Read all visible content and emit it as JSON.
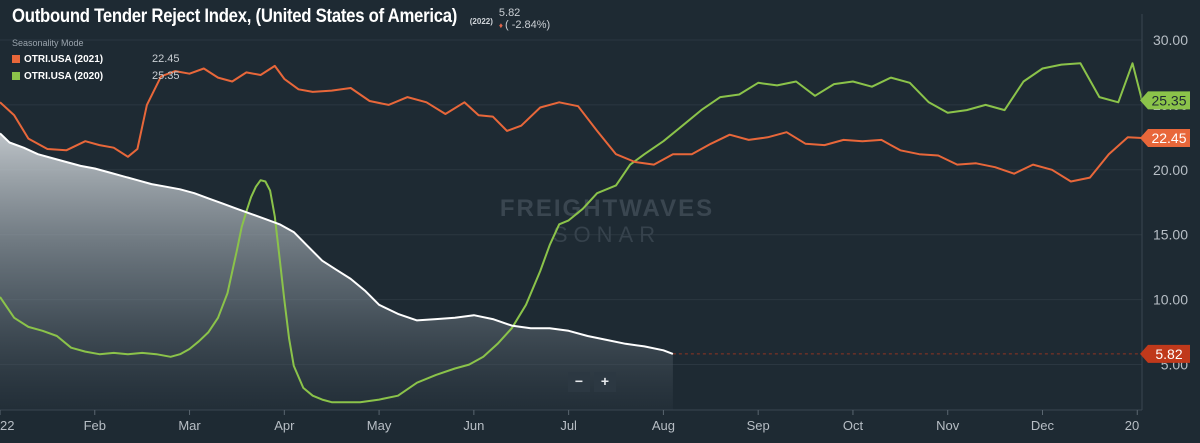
{
  "header": {
    "title": "Outbound Tender Reject Index, (United States of America)",
    "year_tag": "(2022)",
    "current_value": "5.82",
    "change": "( -2.84%)",
    "seasonality_label": "Seasonality Mode"
  },
  "legend": [
    {
      "name": "OTRI.USA (2021)",
      "value": "22.45",
      "color": "#e8673a"
    },
    {
      "name": "OTRI.USA (2020)",
      "value": "25.35",
      "color": "#8bc34a"
    }
  ],
  "watermark": {
    "line1": "FREIGHTWAVES",
    "line2": "SONAR"
  },
  "zoom": {
    "minus": "−",
    "plus": "+"
  },
  "colors": {
    "background": "#1e2a33",
    "series_2022": "#ffffff",
    "series_2021": "#e8673a",
    "series_2020": "#8bc34a",
    "current_badge": "#c0391b",
    "axis_text": "#b7bec5"
  },
  "chart_data": {
    "type": "line",
    "y_ticks": [
      "5.00",
      "10.00",
      "15.00",
      "20.00",
      "25.00",
      "30.00"
    ],
    "y_tick_values": [
      5,
      10,
      15,
      20,
      25,
      30
    ],
    "ylim": [
      1.5,
      32
    ],
    "x_ticks": [
      {
        "label": "22",
        "month": 0
      },
      {
        "label": "Feb",
        "month": 1
      },
      {
        "label": "Mar",
        "month": 2
      },
      {
        "label": "Apr",
        "month": 3
      },
      {
        "label": "May",
        "month": 4
      },
      {
        "label": "Jun",
        "month": 5
      },
      {
        "label": "Jul",
        "month": 6
      },
      {
        "label": "Aug",
        "month": 7
      },
      {
        "label": "Sep",
        "month": 8
      },
      {
        "label": "Oct",
        "month": 9
      },
      {
        "label": "Nov",
        "month": 10
      },
      {
        "label": "Dec",
        "month": 11
      },
      {
        "label": "20",
        "month": 12
      }
    ],
    "xlim": [
      0,
      12.05
    ],
    "series": [
      {
        "name": "OTRI.USA (2022)",
        "color": "#ffffff",
        "end_label": "5.82",
        "x": [
          0,
          0.1,
          0.25,
          0.4,
          0.55,
          0.7,
          0.85,
          1.0,
          1.15,
          1.3,
          1.45,
          1.6,
          1.75,
          1.9,
          2.05,
          2.2,
          2.35,
          2.5,
          2.65,
          2.8,
          2.95,
          3.1,
          3.25,
          3.4,
          3.55,
          3.7,
          3.85,
          4.0,
          4.2,
          4.4,
          4.6,
          4.8,
          5.0,
          5.2,
          5.4,
          5.6,
          5.8,
          6.0,
          6.2,
          6.4,
          6.6,
          6.8,
          7.0,
          7.1
        ],
        "y": [
          22.8,
          22.1,
          21.7,
          21.2,
          20.9,
          20.6,
          20.3,
          20.1,
          19.8,
          19.5,
          19.2,
          18.9,
          18.7,
          18.5,
          18.2,
          17.8,
          17.4,
          17.0,
          16.6,
          16.2,
          15.8,
          15.2,
          14.1,
          13.0,
          12.3,
          11.6,
          10.7,
          9.6,
          8.9,
          8.4,
          8.5,
          8.6,
          8.8,
          8.5,
          8.0,
          7.8,
          7.8,
          7.6,
          7.2,
          6.9,
          6.6,
          6.4,
          6.1,
          5.82
        ]
      },
      {
        "name": "OTRI.USA (2021)",
        "color": "#e8673a",
        "end_label": "22.45",
        "x": [
          0,
          0.15,
          0.3,
          0.5,
          0.7,
          0.9,
          1.05,
          1.2,
          1.35,
          1.45,
          1.55,
          1.7,
          1.85,
          2.0,
          2.15,
          2.3,
          2.45,
          2.6,
          2.75,
          2.9,
          3.0,
          3.15,
          3.3,
          3.5,
          3.7,
          3.9,
          4.1,
          4.3,
          4.5,
          4.7,
          4.9,
          5.05,
          5.2,
          5.35,
          5.5,
          5.7,
          5.9,
          6.1,
          6.3,
          6.5,
          6.7,
          6.9,
          7.1,
          7.3,
          7.5,
          7.7,
          7.9,
          8.1,
          8.3,
          8.5,
          8.7,
          8.9,
          9.1,
          9.3,
          9.5,
          9.7,
          9.9,
          10.1,
          10.3,
          10.5,
          10.7,
          10.9,
          11.1,
          11.3,
          11.5,
          11.7,
          11.9,
          12.05
        ],
        "y": [
          25.2,
          24.2,
          22.4,
          21.6,
          21.5,
          22.2,
          21.9,
          21.7,
          21.0,
          21.6,
          25.0,
          27.2,
          27.6,
          27.4,
          27.8,
          27.1,
          26.8,
          27.5,
          27.3,
          28.0,
          27.0,
          26.2,
          26.0,
          26.1,
          26.3,
          25.3,
          25.0,
          25.6,
          25.2,
          24.3,
          25.2,
          24.2,
          24.1,
          23.0,
          23.4,
          24.8,
          25.2,
          24.9,
          23.0,
          21.2,
          20.6,
          20.4,
          21.2,
          21.2,
          22.0,
          22.7,
          22.3,
          22.5,
          22.9,
          22.0,
          21.9,
          22.3,
          22.2,
          22.3,
          21.5,
          21.2,
          21.1,
          20.4,
          20.5,
          20.2,
          19.7,
          20.4,
          20.0,
          19.1,
          19.4,
          21.2,
          22.5,
          22.45
        ]
      },
      {
        "name": "OTRI.USA (2020)",
        "color": "#8bc34a",
        "end_label": "25.35",
        "x": [
          0,
          0.15,
          0.3,
          0.45,
          0.6,
          0.75,
          0.9,
          1.05,
          1.2,
          1.35,
          1.5,
          1.65,
          1.8,
          1.9,
          2.0,
          2.1,
          2.2,
          2.3,
          2.4,
          2.5,
          2.55,
          2.6,
          2.65,
          2.7,
          2.75,
          2.8,
          2.85,
          2.9,
          2.95,
          3.0,
          3.05,
          3.1,
          3.2,
          3.3,
          3.4,
          3.5,
          3.6,
          3.8,
          4.0,
          4.2,
          4.4,
          4.6,
          4.8,
          4.95,
          5.1,
          5.25,
          5.4,
          5.55,
          5.7,
          5.8,
          5.9,
          6.0,
          6.15,
          6.3,
          6.5,
          6.65,
          6.8,
          7.0,
          7.2,
          7.4,
          7.6,
          7.8,
          8.0,
          8.2,
          8.4,
          8.6,
          8.8,
          9.0,
          9.2,
          9.4,
          9.6,
          9.8,
          10.0,
          10.2,
          10.4,
          10.6,
          10.8,
          11.0,
          11.2,
          11.4,
          11.6,
          11.8,
          11.95,
          12.05
        ],
        "y": [
          10.2,
          8.6,
          7.9,
          7.6,
          7.2,
          6.3,
          6.0,
          5.8,
          5.9,
          5.8,
          5.9,
          5.8,
          5.6,
          5.8,
          6.2,
          6.8,
          7.5,
          8.6,
          10.5,
          13.8,
          15.6,
          16.8,
          17.9,
          18.7,
          19.2,
          19.1,
          18.4,
          16.4,
          13.2,
          10.0,
          7.0,
          4.9,
          3.2,
          2.6,
          2.3,
          2.1,
          2.1,
          2.1,
          2.3,
          2.6,
          3.6,
          4.2,
          4.7,
          5.0,
          5.6,
          6.6,
          7.8,
          9.6,
          12.2,
          14.2,
          15.8,
          16.1,
          17.0,
          18.2,
          18.8,
          20.4,
          21.2,
          22.2,
          23.4,
          24.6,
          25.6,
          25.8,
          26.7,
          26.5,
          26.8,
          25.7,
          26.6,
          26.8,
          26.4,
          27.1,
          26.7,
          25.2,
          24.4,
          24.6,
          25.0,
          24.6,
          26.8,
          27.8,
          28.1,
          28.2,
          25.6,
          25.2,
          28.2,
          25.35
        ]
      }
    ],
    "current_marker": {
      "value": 5.82,
      "label": "5.82"
    }
  }
}
